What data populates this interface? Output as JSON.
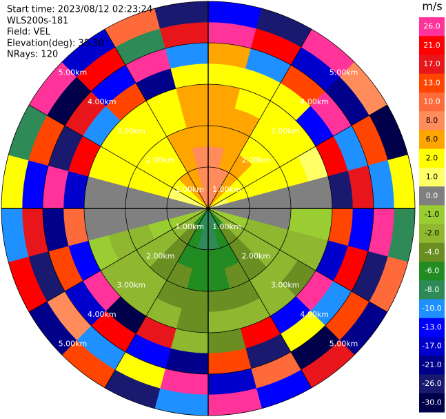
{
  "chart_data": {
    "type": "ppi",
    "header": [
      "Start time: 2023/08/12 02:23:24",
      "WLS200s-181",
      "Field: VEL",
      "Elevation(deg): 35.30",
      "NRays: 120"
    ],
    "azimuths": [
      7.5,
      22.5,
      37.5,
      52.5,
      67.5,
      82.5,
      97.5,
      112.5,
      127.5,
      142.5,
      157.5,
      172.5,
      187.5,
      202.5,
      217.5,
      232.5,
      247.5,
      262.5,
      277.5,
      292.5,
      307.5,
      322.5,
      337.5,
      352.5
    ],
    "ranges": [
      0,
      0.5,
      1,
      1.5,
      2,
      2.5,
      3,
      3.5,
      4,
      4.5,
      5
    ],
    "rlim": [
      0,
      5
    ],
    "rticks": [
      {
        "value": 1,
        "label": "1.00km"
      },
      {
        "value": 2,
        "label": "2.00km"
      },
      {
        "value": 3,
        "label": "3.00km"
      },
      {
        "value": 4,
        "label": "4.00km"
      },
      {
        "value": 5,
        "label": "5.00km"
      }
    ],
    "values": [
      [
        8,
        8,
        8,
        6,
        6,
        6,
        2,
        6,
        26,
        -13
      ],
      [
        8,
        8,
        6,
        6,
        6,
        2,
        2,
        -10,
        21,
        -26
      ],
      [
        6,
        6,
        6,
        2,
        2,
        2,
        2,
        13,
        -17,
        26
      ],
      [
        2,
        2,
        2,
        2,
        2,
        2,
        -13,
        26,
        -21,
        8
      ],
      [
        1,
        2,
        2,
        2,
        2,
        1,
        21,
        -10,
        13,
        -30
      ],
      [
        0,
        0,
        0,
        0,
        0,
        0,
        -26,
        17,
        -10,
        2
      ],
      [
        0,
        0,
        0,
        0,
        -1,
        -1,
        13,
        -13,
        26,
        -8
      ],
      [
        -1,
        -1,
        -2,
        -2,
        -2,
        -2,
        -17,
        21,
        -26,
        10
      ],
      [
        -2,
        -2,
        -2,
        -2,
        -2,
        -4,
        26,
        -10,
        13,
        -21
      ],
      [
        -6,
        -4,
        -4,
        -4,
        -2,
        -2,
        -13,
        2,
        -30,
        17
      ],
      [
        -8,
        -6,
        -6,
        -4,
        -4,
        -2,
        21,
        -26,
        10,
        -13
      ],
      [
        -8,
        -8,
        -6,
        -6,
        -4,
        -2,
        -4,
        13,
        -17,
        26
      ],
      [
        -8,
        -8,
        -6,
        -6,
        -4,
        -4,
        -2,
        -21,
        26,
        -10
      ],
      [
        -8,
        -6,
        -6,
        -4,
        -4,
        -2,
        17,
        -13,
        2,
        -26
      ],
      [
        -6,
        -4,
        -4,
        -4,
        -2,
        -2,
        -30,
        21,
        -10,
        13
      ],
      [
        -2,
        -2,
        -2,
        -2,
        -2,
        -2,
        26,
        -17,
        8,
        -21
      ],
      [
        -1,
        -1,
        -1,
        -2,
        -2,
        -1,
        -13,
        13,
        -26,
        21
      ],
      [
        0,
        0,
        0,
        0,
        0,
        0,
        10,
        -21,
        17,
        -10
      ],
      [
        0,
        0,
        0,
        0,
        0,
        0,
        -17,
        26,
        -13,
        2
      ],
      [
        1,
        1,
        2,
        2,
        2,
        2,
        21,
        -26,
        13,
        -8
      ],
      [
        2,
        2,
        2,
        2,
        2,
        2,
        -10,
        17,
        -30,
        26
      ],
      [
        6,
        6,
        2,
        2,
        2,
        2,
        13,
        -13,
        21,
        -17
      ],
      [
        8,
        6,
        6,
        6,
        2,
        2,
        -21,
        26,
        -8,
        10
      ],
      [
        8,
        8,
        8,
        6,
        6,
        6,
        2,
        -10,
        17,
        -26
      ]
    ],
    "colorbar": {
      "label": "m/s",
      "ticks": [
        {
          "value": 26,
          "label": "26.0"
        },
        {
          "value": 21,
          "label": "21.0"
        },
        {
          "value": 17,
          "label": "17.0"
        },
        {
          "value": 13,
          "label": "13.0"
        },
        {
          "value": 10,
          "label": "10.0"
        },
        {
          "value": 8,
          "label": "8.0"
        },
        {
          "value": 6,
          "label": "6.0"
        },
        {
          "value": 2,
          "label": "2.0"
        },
        {
          "value": 1,
          "label": "1.0"
        },
        {
          "value": 0,
          "label": "0.0"
        },
        {
          "value": -1,
          "label": "-1.0"
        },
        {
          "value": -2,
          "label": "-2.0"
        },
        {
          "value": -4,
          "label": "-4.0"
        },
        {
          "value": -6,
          "label": "-6.0"
        },
        {
          "value": -8,
          "label": "-8.0"
        },
        {
          "value": -10,
          "label": "-10.0"
        },
        {
          "value": -13,
          "label": "-13.0"
        },
        {
          "value": -17,
          "label": "-17.0"
        },
        {
          "value": -21,
          "label": "-21.0"
        },
        {
          "value": -26,
          "label": "-26.0"
        },
        {
          "value": -30,
          "label": "-30.0"
        }
      ],
      "colors": [
        "#ff3399",
        "#ff0000",
        "#e8161b",
        "#ff4500",
        "#ff6a3a",
        "#ff8c5a",
        "#ffa500",
        "#ffff00",
        "#ffff66",
        "#808080",
        "#9acd32",
        "#8fb830",
        "#6b8e23",
        "#228b22",
        "#2e8b57",
        "#1e90ff",
        "#0000ff",
        "#0000cd",
        "#00008b",
        "#191970",
        "#00004a"
      ]
    }
  }
}
